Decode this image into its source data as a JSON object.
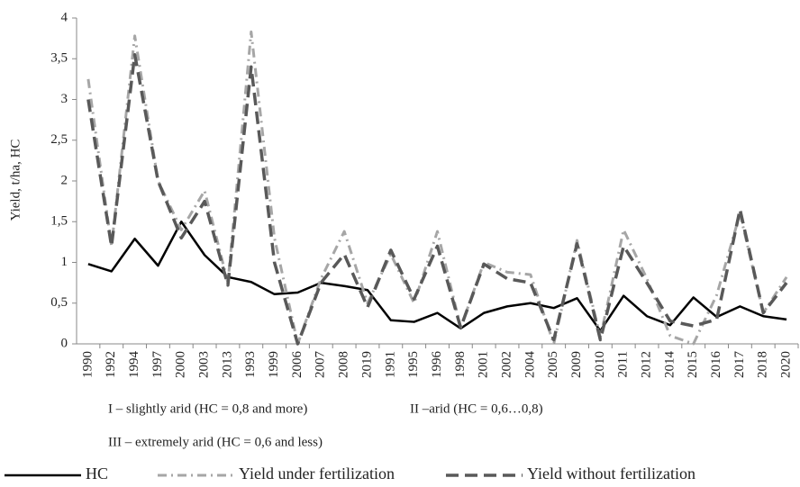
{
  "chart_data": {
    "type": "line",
    "y_label": "Yield, t/ha, HC",
    "categories": [
      "1990",
      "1992",
      "1994",
      "1997",
      "2000",
      "2003",
      "2013",
      "1993",
      "1999",
      "2006",
      "2007",
      "2008",
      "2019",
      "1991",
      "1995",
      "1996",
      "1998",
      "2001",
      "2002",
      "2004",
      "2005",
      "2009",
      "2010",
      "2011",
      "2012",
      "2014",
      "2015",
      "2016",
      "2017",
      "2018",
      "2020"
    ],
    "series": [
      {
        "name": "HC",
        "color": "#000000",
        "style": "solid",
        "values": [
          0.98,
          0.89,
          1.29,
          0.96,
          1.5,
          1.09,
          0.82,
          0.76,
          0.61,
          0.63,
          0.75,
          0.71,
          0.66,
          0.29,
          0.27,
          0.38,
          0.19,
          0.38,
          0.46,
          0.5,
          0.44,
          0.56,
          0.16,
          0.59,
          0.34,
          0.23,
          0.57,
          0.33,
          0.46,
          0.34,
          0.3
        ]
      },
      {
        "name": "Yield under fertilization",
        "color": "#a6a6a6",
        "style": "dashdot",
        "values": [
          3.25,
          1.2,
          3.78,
          2.0,
          1.4,
          1.88,
          0.75,
          3.83,
          1.3,
          0.0,
          0.8,
          1.38,
          0.5,
          1.1,
          0.5,
          1.38,
          0.2,
          1.0,
          0.88,
          0.85,
          0.0,
          1.27,
          0.08,
          1.4,
          0.8,
          0.1,
          0.0,
          0.6,
          1.6,
          0.38,
          0.82
        ]
      },
      {
        "name": "Yield without fertilization",
        "color": "#595959",
        "style": "dash",
        "values": [
          3.0,
          1.2,
          3.55,
          2.0,
          1.3,
          1.75,
          0.72,
          3.4,
          1.0,
          0.0,
          0.75,
          1.1,
          0.45,
          1.15,
          0.55,
          1.2,
          0.2,
          0.98,
          0.8,
          0.75,
          0.05,
          1.23,
          0.05,
          1.2,
          0.75,
          0.28,
          0.22,
          0.3,
          1.65,
          0.38,
          0.75
        ]
      }
    ],
    "ylim": [
      0,
      4
    ],
    "yticks": [
      0,
      {
        "value": 0.5,
        "label": "0,5"
      },
      1,
      {
        "value": 1.5,
        "label": "1,5"
      },
      2,
      {
        "value": 2.5,
        "label": "2,5"
      },
      3,
      {
        "value": 3.5,
        "label": "3,5"
      },
      4
    ],
    "grid": false,
    "annotations": [
      "I – slightly arid (HC = 0,8 and more)",
      "II –arid (HC = 0,6…0,8)",
      "III – extremely arid (HC = 0,6 and less)"
    ]
  }
}
